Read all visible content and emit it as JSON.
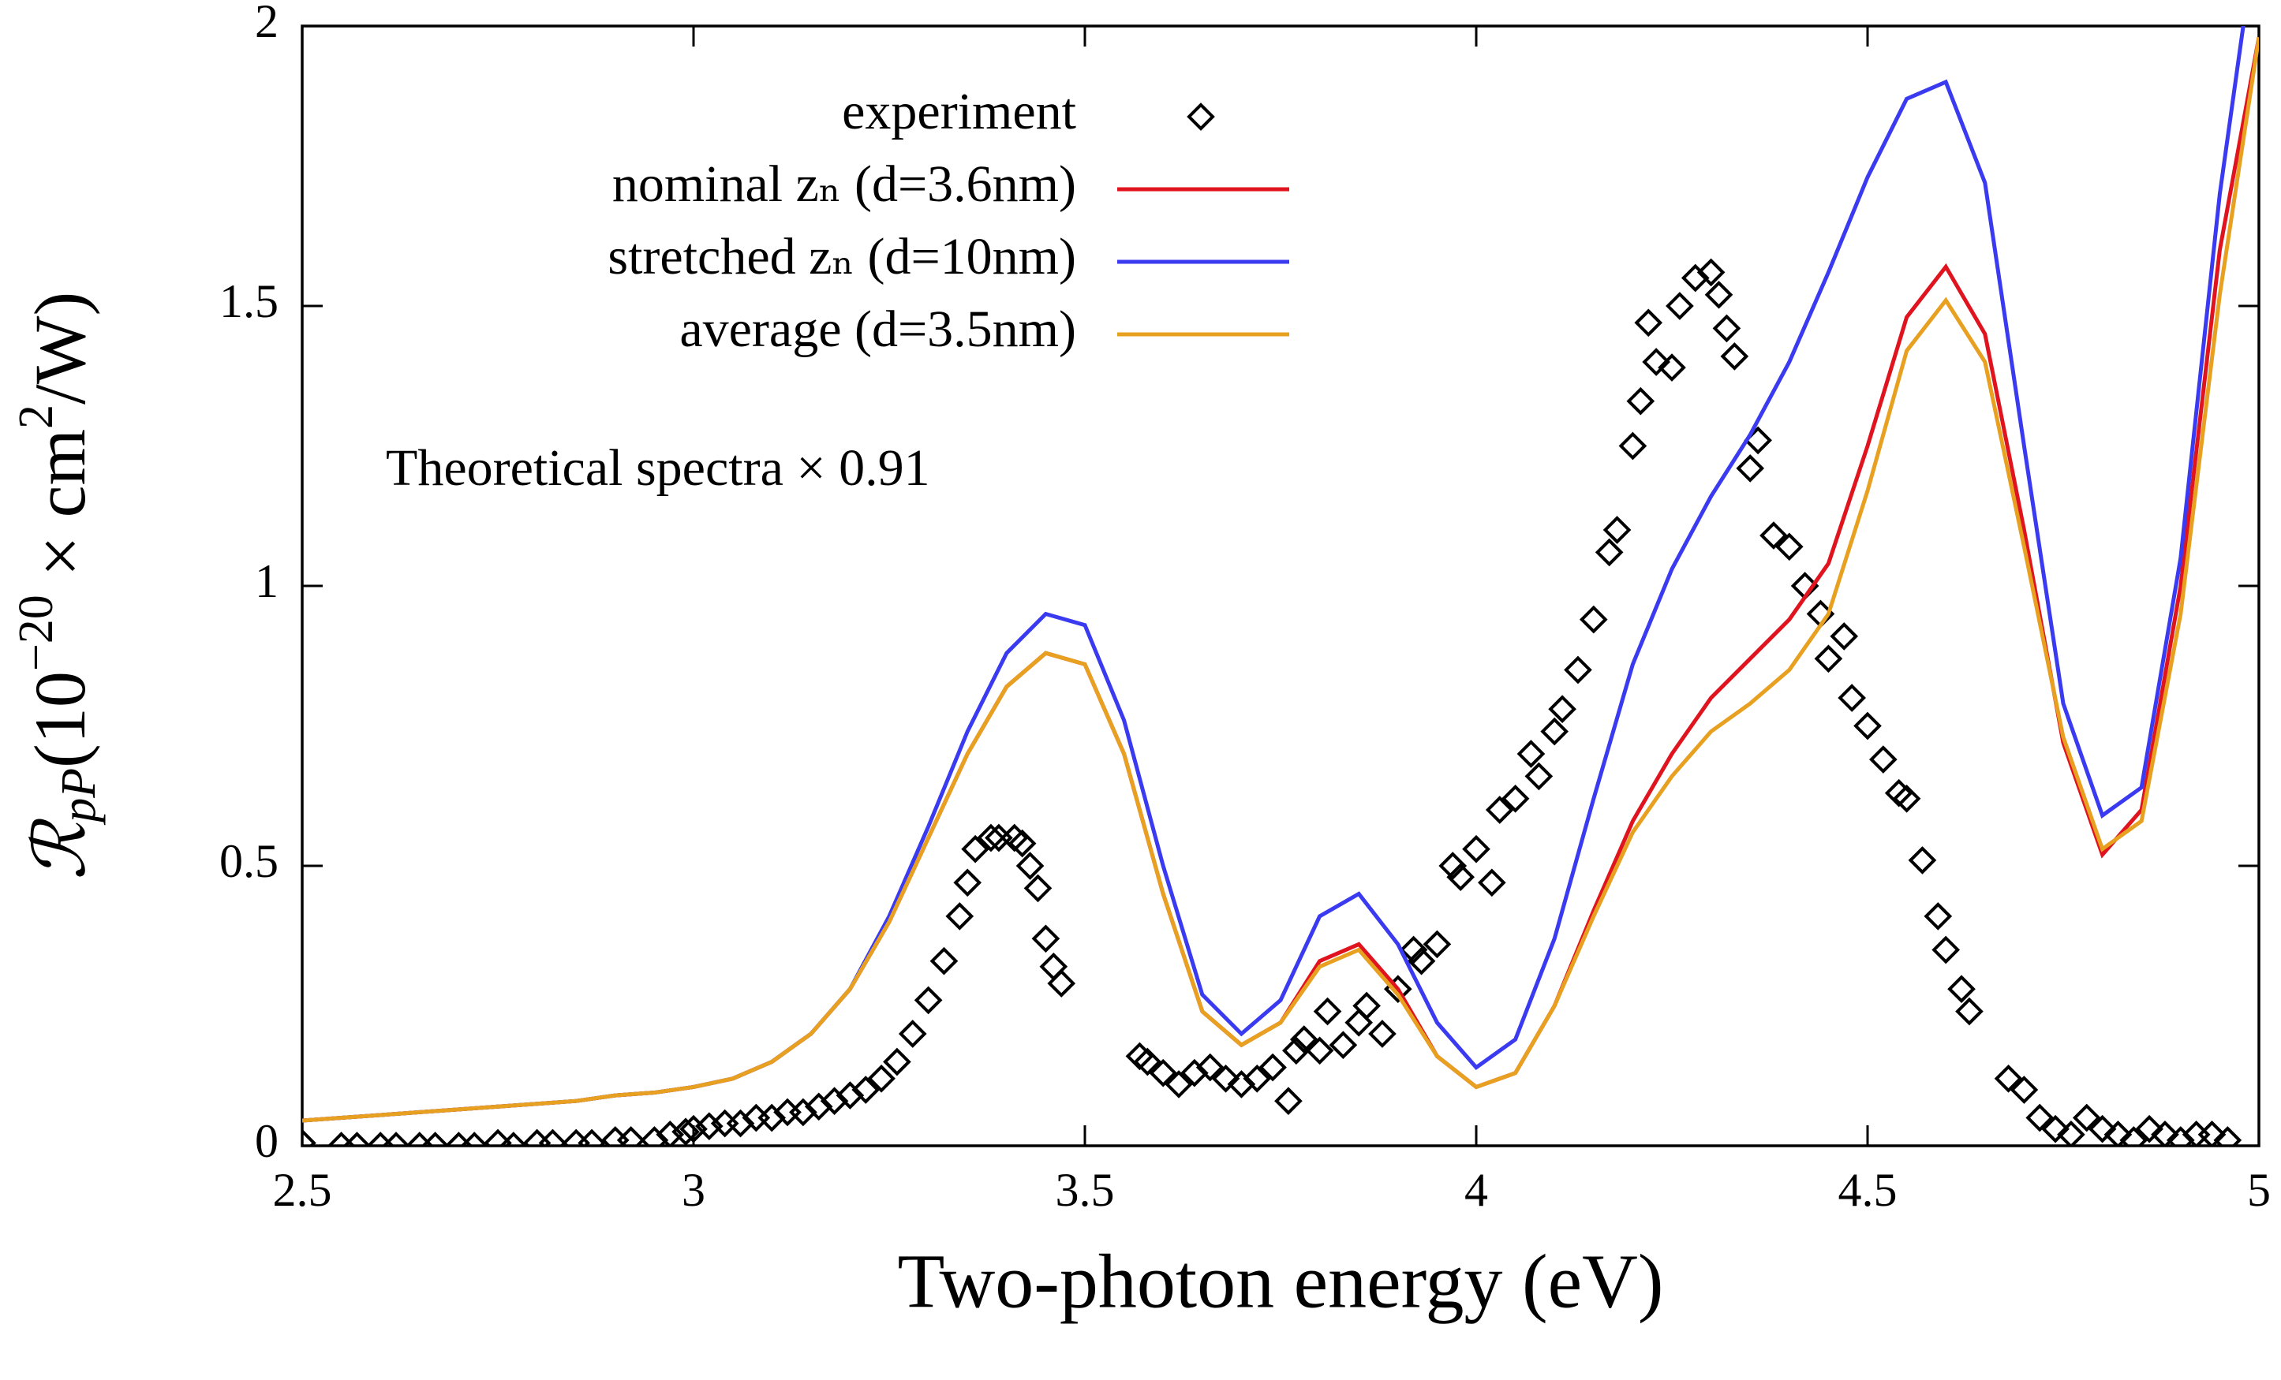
{
  "chart_data": {
    "type": "line",
    "xlabel": "Two-photon energy (eV)",
    "ylabel": [
      "ℛ",
      "pP",
      "(10",
      "−20",
      " × cm",
      "2",
      "/W)"
    ],
    "annotation": "Theoretical spectra × 0.91",
    "xlim": [
      2.5,
      5
    ],
    "ylim": [
      0,
      2
    ],
    "xticks": [
      2.5,
      3,
      3.5,
      4,
      4.5,
      5
    ],
    "yticks": [
      0,
      0.5,
      1,
      1.5,
      2
    ],
    "legend": "top-right",
    "series": [
      {
        "name": "experiment",
        "style": "markers",
        "color": "#000000",
        "x": [
          2.5,
          2.55,
          2.57,
          2.6,
          2.62,
          2.65,
          2.67,
          2.7,
          2.72,
          2.75,
          2.77,
          2.8,
          2.82,
          2.85,
          2.87,
          2.9,
          2.92,
          2.95,
          2.97,
          2.99,
          3.0,
          3.02,
          3.04,
          3.06,
          3.08,
          3.1,
          3.12,
          3.14,
          3.16,
          3.18,
          3.2,
          3.22,
          3.24,
          3.26,
          3.28,
          3.3,
          3.32,
          3.34,
          3.35,
          3.36,
          3.38,
          3.39,
          3.41,
          3.42,
          3.43,
          3.44,
          3.45,
          3.46,
          3.47,
          3.57,
          3.58,
          3.6,
          3.62,
          3.64,
          3.66,
          3.68,
          3.7,
          3.72,
          3.74,
          3.76,
          3.77,
          3.78,
          3.8,
          3.81,
          3.83,
          3.85,
          3.86,
          3.88,
          3.9,
          3.92,
          3.93,
          3.95,
          3.97,
          3.98,
          4.0,
          4.02,
          4.03,
          4.05,
          4.07,
          4.08,
          4.1,
          4.11,
          4.13,
          4.15,
          4.17,
          4.18,
          4.2,
          4.21,
          4.22,
          4.23,
          4.25,
          4.26,
          4.28,
          4.3,
          4.31,
          4.32,
          4.33,
          4.35,
          4.36,
          4.38,
          4.4,
          4.42,
          4.44,
          4.45,
          4.47,
          4.48,
          4.5,
          4.52,
          4.54,
          4.55,
          4.57,
          4.59,
          4.6,
          4.62,
          4.63,
          4.68,
          4.7,
          4.72,
          4.74,
          4.76,
          4.78,
          4.8,
          4.82,
          4.84,
          4.86,
          4.88,
          4.9,
          4.92,
          4.94,
          4.96
        ],
        "values": [
          0.005,
          0,
          0,
          0,
          0,
          0,
          0,
          0,
          0,
          0.005,
          0,
          0.005,
          0.005,
          0.005,
          0.005,
          0.01,
          0.01,
          0.01,
          0.02,
          0.025,
          0.03,
          0.035,
          0.04,
          0.04,
          0.05,
          0.05,
          0.06,
          0.06,
          0.07,
          0.08,
          0.09,
          0.1,
          0.12,
          0.15,
          0.2,
          0.26,
          0.33,
          0.41,
          0.47,
          0.53,
          0.55,
          0.55,
          0.55,
          0.54,
          0.5,
          0.46,
          0.37,
          0.32,
          0.29,
          0.16,
          0.15,
          0.13,
          0.11,
          0.13,
          0.14,
          0.12,
          0.11,
          0.12,
          0.14,
          0.08,
          0.17,
          0.19,
          0.17,
          0.24,
          0.18,
          0.22,
          0.25,
          0.2,
          0.28,
          0.35,
          0.33,
          0.36,
          0.5,
          0.48,
          0.53,
          0.47,
          0.6,
          0.62,
          0.7,
          0.66,
          0.74,
          0.78,
          0.85,
          0.94,
          1.06,
          1.1,
          1.25,
          1.33,
          1.47,
          1.4,
          1.39,
          1.5,
          1.55,
          1.56,
          1.52,
          1.46,
          1.41,
          1.21,
          1.26,
          1.09,
          1.07,
          1.0,
          0.95,
          0.87,
          0.91,
          0.8,
          0.75,
          0.69,
          0.63,
          0.62,
          0.51,
          0.41,
          0.35,
          0.28,
          0.24,
          0.12,
          0.1,
          0.05,
          0.03,
          0.02,
          0.05,
          0.03,
          0.02,
          0.01,
          0.03,
          0.02,
          0.01,
          0.02,
          0.02,
          0.01
        ]
      },
      {
        "name": "nominal zₙ (d=3.6nm)",
        "style": "line",
        "color": "#e0141e",
        "x": [
          2.5,
          2.55,
          2.6,
          2.65,
          2.7,
          2.75,
          2.8,
          2.85,
          2.9,
          2.95,
          3.0,
          3.05,
          3.1,
          3.15,
          3.2,
          3.25,
          3.3,
          3.35,
          3.4,
          3.45,
          3.5,
          3.55,
          3.6,
          3.65,
          3.7,
          3.75,
          3.8,
          3.85,
          3.9,
          3.95,
          4.0,
          4.05,
          4.1,
          4.15,
          4.2,
          4.25,
          4.3,
          4.35,
          4.4,
          4.45,
          4.5,
          4.55,
          4.6,
          4.65,
          4.7,
          4.75,
          4.8,
          4.85,
          4.9,
          4.95,
          5.0
        ],
        "values": [
          0.045,
          0.05,
          0.055,
          0.06,
          0.065,
          0.07,
          0.075,
          0.08,
          0.09,
          0.095,
          0.105,
          0.12,
          0.15,
          0.2,
          0.28,
          0.4,
          0.55,
          0.7,
          0.82,
          0.88,
          0.86,
          0.7,
          0.45,
          0.24,
          0.18,
          0.22,
          0.33,
          0.36,
          0.28,
          0.16,
          0.105,
          0.13,
          0.25,
          0.42,
          0.58,
          0.7,
          0.8,
          0.87,
          0.94,
          1.04,
          1.25,
          1.48,
          1.57,
          1.45,
          1.1,
          0.72,
          0.52,
          0.6,
          1.0,
          1.6,
          1.98
        ]
      },
      {
        "name": "stretched zₙ (d=10nm)",
        "style": "line",
        "color": "#3a3af0",
        "x": [
          2.5,
          2.55,
          2.6,
          2.65,
          2.7,
          2.75,
          2.8,
          2.85,
          2.9,
          2.95,
          3.0,
          3.05,
          3.1,
          3.15,
          3.2,
          3.25,
          3.3,
          3.35,
          3.4,
          3.45,
          3.5,
          3.55,
          3.6,
          3.65,
          3.7,
          3.75,
          3.8,
          3.85,
          3.9,
          3.95,
          4.0,
          4.05,
          4.1,
          4.15,
          4.2,
          4.25,
          4.3,
          4.35,
          4.4,
          4.45,
          4.5,
          4.55,
          4.6,
          4.65,
          4.7,
          4.75,
          4.8,
          4.85,
          4.9,
          4.95,
          5.0
        ],
        "values": [
          0.045,
          0.05,
          0.055,
          0.06,
          0.065,
          0.07,
          0.075,
          0.08,
          0.09,
          0.095,
          0.105,
          0.12,
          0.15,
          0.2,
          0.28,
          0.41,
          0.57,
          0.74,
          0.88,
          0.95,
          0.93,
          0.76,
          0.5,
          0.27,
          0.2,
          0.26,
          0.41,
          0.45,
          0.36,
          0.22,
          0.14,
          0.19,
          0.37,
          0.62,
          0.86,
          1.03,
          1.16,
          1.27,
          1.4,
          1.56,
          1.73,
          1.87,
          1.9,
          1.72,
          1.25,
          0.79,
          0.59,
          0.64,
          1.05,
          1.7,
          2.2
        ]
      },
      {
        "name": "average (d=3.5nm)",
        "style": "line",
        "color": "#e8a020",
        "x": [
          2.5,
          2.55,
          2.6,
          2.65,
          2.7,
          2.75,
          2.8,
          2.85,
          2.9,
          2.95,
          3.0,
          3.05,
          3.1,
          3.15,
          3.2,
          3.25,
          3.3,
          3.35,
          3.4,
          3.45,
          3.5,
          3.55,
          3.6,
          3.65,
          3.7,
          3.75,
          3.8,
          3.85,
          3.9,
          3.95,
          4.0,
          4.05,
          4.1,
          4.15,
          4.2,
          4.25,
          4.3,
          4.35,
          4.4,
          4.45,
          4.5,
          4.55,
          4.6,
          4.65,
          4.7,
          4.75,
          4.8,
          4.85,
          4.9,
          4.95,
          5.0
        ],
        "values": [
          0.045,
          0.05,
          0.055,
          0.06,
          0.065,
          0.07,
          0.075,
          0.08,
          0.09,
          0.095,
          0.105,
          0.12,
          0.15,
          0.2,
          0.28,
          0.4,
          0.55,
          0.7,
          0.82,
          0.88,
          0.86,
          0.7,
          0.45,
          0.24,
          0.18,
          0.22,
          0.32,
          0.35,
          0.27,
          0.16,
          0.105,
          0.13,
          0.25,
          0.41,
          0.56,
          0.66,
          0.74,
          0.79,
          0.85,
          0.95,
          1.17,
          1.42,
          1.51,
          1.4,
          1.07,
          0.73,
          0.53,
          0.58,
          0.95,
          1.52,
          1.98
        ]
      }
    ]
  }
}
